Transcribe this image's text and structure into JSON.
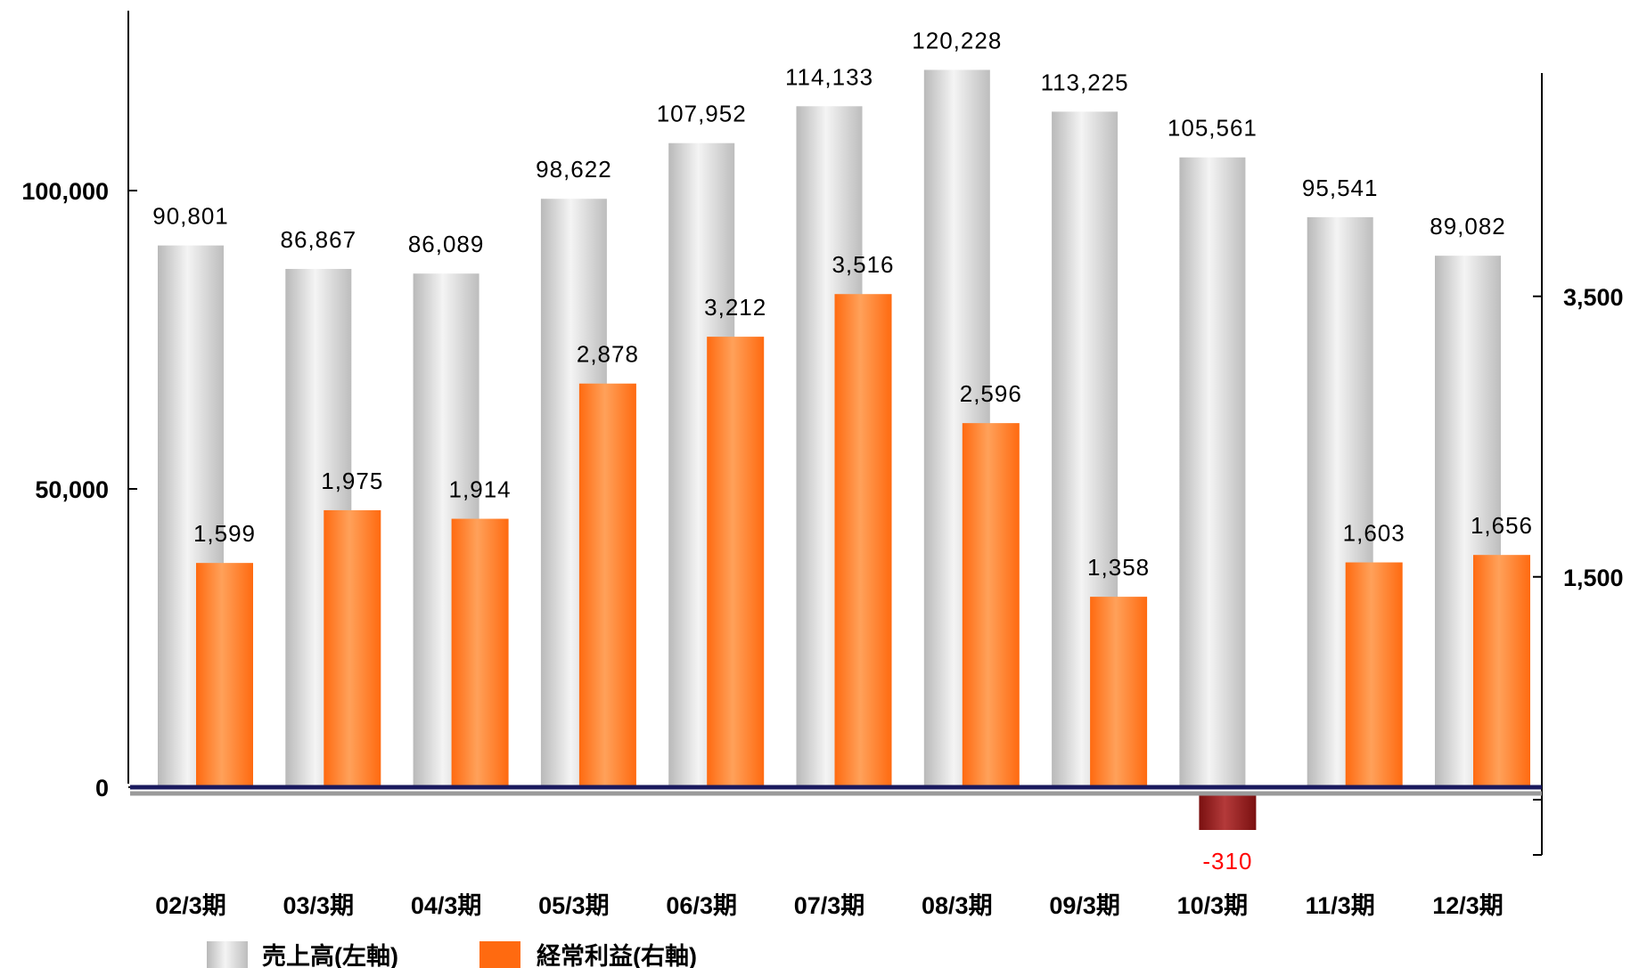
{
  "chart_data": {
    "type": "bar",
    "categories": [
      "02/3期",
      "03/3期",
      "04/3期",
      "05/3期",
      "06/3期",
      "07/3期",
      "08/3期",
      "09/3期",
      "10/3期",
      "11/3期",
      "12/3期"
    ],
    "series": [
      {
        "name": "売上高(左軸)",
        "axis": "left",
        "color": "#c8c8c8",
        "values": [
          90801,
          86867,
          86089,
          98622,
          107952,
          114133,
          120228,
          113225,
          105561,
          95541,
          89082
        ],
        "labels": [
          "90,801",
          "86,867",
          "86,089",
          "98,622",
          "107,952",
          "114,133",
          "120,228",
          "113,225",
          "105,561",
          "95,541",
          "89,082"
        ]
      },
      {
        "name": "経常利益(右軸)",
        "axis": "right",
        "color": "#ff7a1a",
        "negative_color": "#8b1a1a",
        "values": [
          1599,
          1975,
          1914,
          2878,
          3212,
          3516,
          2596,
          1358,
          -310,
          1603,
          1656
        ],
        "labels": [
          "1,599",
          "1,975",
          "1,914",
          "2,878",
          "3,212",
          "3,516",
          "2,596",
          "1,358",
          "-310",
          "1,603",
          "1,656"
        ]
      }
    ],
    "left_axis": {
      "ticks": [
        0,
        50000,
        100000
      ],
      "tick_labels": [
        "0",
        "50,000",
        "100,000"
      ],
      "range": [
        0,
        130000
      ]
    },
    "right_axis": {
      "ticks": [
        1500,
        3500
      ],
      "tick_labels": [
        "1,500",
        "3,500"
      ],
      "range": [
        -500,
        4500
      ]
    },
    "negative_label_color": "#ff0000",
    "baseline_color": "#1a1a5e",
    "legend_position": "bottom-left",
    "grid": false
  }
}
